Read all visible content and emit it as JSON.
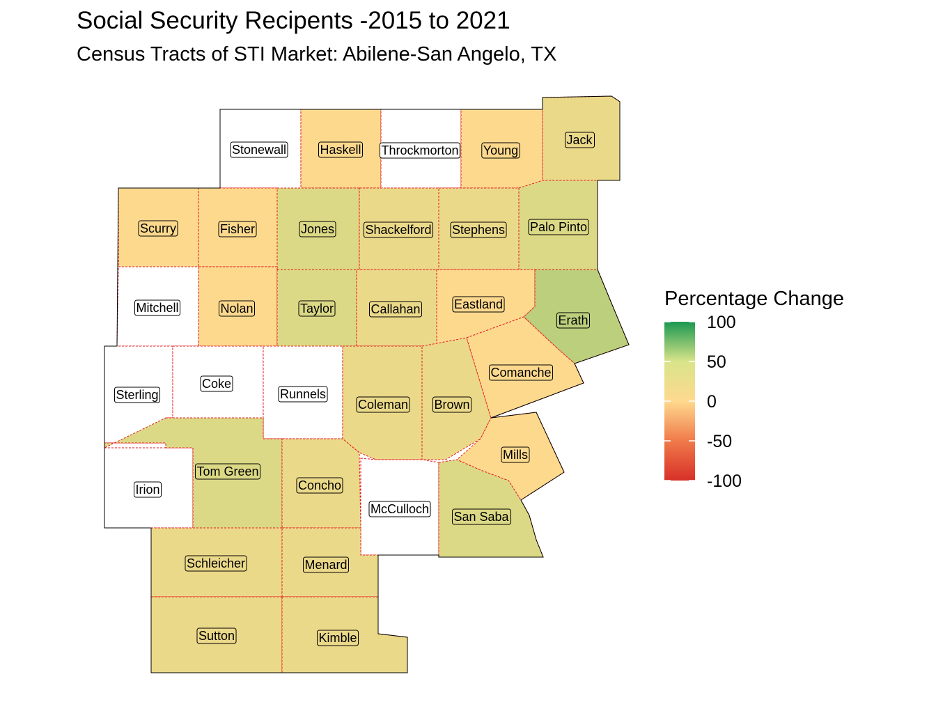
{
  "title": "Social Security Recipents -2015 to 2021",
  "subtitle": "Census Tracts of STI Market: Abilene-San Angelo, TX",
  "legend": {
    "title": "Percentage Change",
    "ticks": [
      "100",
      "50",
      "0",
      "-50",
      "-100"
    ],
    "range": [
      -100,
      100
    ],
    "gradient": [
      "#1a9850",
      "#d9e48a",
      "#fed98e",
      "#f07a4a",
      "#d73027"
    ]
  },
  "colors": {
    "none": "#ffffff",
    "flat": "#fdd98e",
    "slight": "#ebd98a",
    "moderate": "#dcd986",
    "strong": "#bccf7c",
    "county_border": "#e31a1c"
  },
  "counties": [
    {
      "name": "Stonewall",
      "fill": "none"
    },
    {
      "name": "Haskell",
      "fill": "flat"
    },
    {
      "name": "Throckmorton",
      "fill": "none"
    },
    {
      "name": "Young",
      "fill": "flat"
    },
    {
      "name": "Jack",
      "fill": "slight"
    },
    {
      "name": "Scurry",
      "fill": "flat"
    },
    {
      "name": "Fisher",
      "fill": "flat"
    },
    {
      "name": "Jones",
      "fill": "moderate"
    },
    {
      "name": "Shackelford",
      "fill": "slight"
    },
    {
      "name": "Stephens",
      "fill": "slight"
    },
    {
      "name": "Palo Pinto",
      "fill": "moderate"
    },
    {
      "name": "Mitchell",
      "fill": "none"
    },
    {
      "name": "Nolan",
      "fill": "flat"
    },
    {
      "name": "Taylor",
      "fill": "moderate"
    },
    {
      "name": "Callahan",
      "fill": "slight"
    },
    {
      "name": "Eastland",
      "fill": "flat"
    },
    {
      "name": "Erath",
      "fill": "strong"
    },
    {
      "name": "Sterling",
      "fill": "none"
    },
    {
      "name": "Coke",
      "fill": "none"
    },
    {
      "name": "Runnels",
      "fill": "none"
    },
    {
      "name": "Coleman",
      "fill": "slight"
    },
    {
      "name": "Brown",
      "fill": "slight"
    },
    {
      "name": "Comanche",
      "fill": "flat"
    },
    {
      "name": "Mills",
      "fill": "flat"
    },
    {
      "name": "Irion",
      "fill": "none"
    },
    {
      "name": "Tom Green",
      "fill": "moderate"
    },
    {
      "name": "Concho",
      "fill": "slight"
    },
    {
      "name": "McCulloch",
      "fill": "none"
    },
    {
      "name": "San Saba",
      "fill": "moderate"
    },
    {
      "name": "Schleicher",
      "fill": "slight"
    },
    {
      "name": "Menard",
      "fill": "slight"
    },
    {
      "name": "Sutton",
      "fill": "slight"
    },
    {
      "name": "Kimble",
      "fill": "slight"
    }
  ]
}
